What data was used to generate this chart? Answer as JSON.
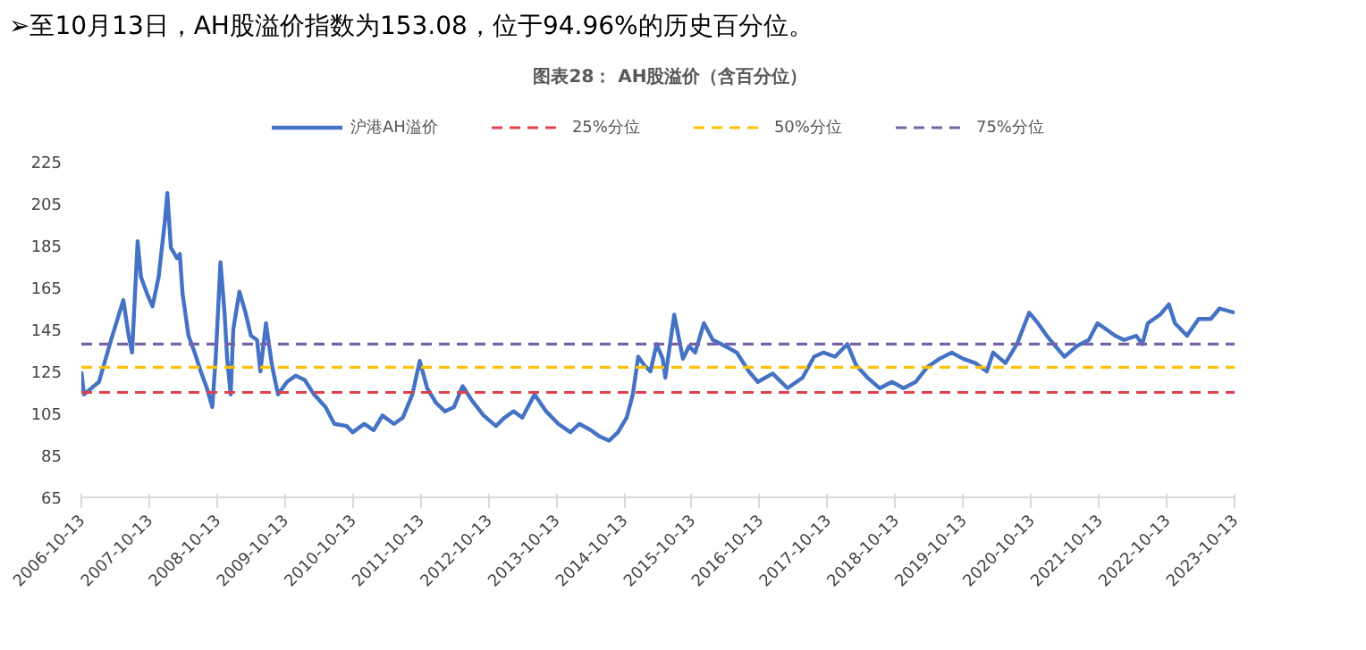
{
  "chart_data": {
    "type": "line",
    "title": "图表28： AH股溢价（含百分位）",
    "annotations": [
      "➢至10月13日，AH股溢价指数为153.08，位于94.96%的历史百分位。"
    ],
    "x": [
      "2006-10-13",
      "2006-10-27",
      "2007-01-16",
      "2007-03-22",
      "2007-05-27",
      "2007-06-25",
      "2007-07-13",
      "2007-08-12",
      "2007-08-30",
      "2007-10-02",
      "2007-10-31",
      "2007-12-03",
      "2008-01-05",
      "2008-01-19",
      "2008-02-07",
      "2008-03-11",
      "2008-03-26",
      "2008-04-10",
      "2008-05-12",
      "2008-06-14",
      "2008-07-17",
      "2008-08-19",
      "2008-09-17",
      "2008-10-05",
      "2008-10-31",
      "2008-11-22",
      "2008-12-06",
      "2008-12-25",
      "2009-01-08",
      "2009-02-10",
      "2009-03-15",
      "2009-04-13",
      "2009-05-16",
      "2009-06-03",
      "2009-07-03",
      "2009-08-04",
      "2009-09-06",
      "2009-10-24",
      "2009-12-10",
      "2010-01-27",
      "2010-03-19",
      "2010-05-20",
      "2010-07-06",
      "2010-09-10",
      "2010-10-13",
      "2010-12-14",
      "2011-02-03",
      "2011-03-22",
      "2011-05-23",
      "2011-07-10",
      "2011-08-30",
      "2011-10-09",
      "2011-11-18",
      "2012-01-05",
      "2012-02-21",
      "2012-04-10",
      "2012-05-27",
      "2012-07-17",
      "2012-09-17",
      "2012-11-22",
      "2013-01-08",
      "2013-02-25",
      "2013-04-13",
      "2013-06-18",
      "2013-08-19",
      "2013-10-24",
      "2013-12-28",
      "2014-02-14",
      "2014-04-17",
      "2014-06-03",
      "2014-07-24",
      "2014-09-10",
      "2014-10-27",
      "2014-11-29",
      "2014-12-28",
      "2015-01-30",
      "2015-03-04",
      "2015-04-06",
      "2015-05-09",
      "2015-05-23",
      "2015-07-10",
      "2015-08-26",
      "2015-09-28",
      "2015-10-31",
      "2015-12-17",
      "2016-02-03",
      "2016-04-10",
      "2016-06-11",
      "2016-08-15",
      "2016-10-02",
      "2016-12-21",
      "2017-03-11",
      "2017-05-31",
      "2017-08-01",
      "2017-09-21",
      "2017-11-22",
      "2018-01-27",
      "2018-03-15",
      "2018-05-16",
      "2018-07-21",
      "2018-09-24",
      "2018-11-26",
      "2019-01-30",
      "2019-04-02",
      "2019-06-07",
      "2019-08-12",
      "2019-10-13",
      "2019-12-17",
      "2020-02-17",
      "2020-03-22",
      "2020-05-27",
      "2020-07-28",
      "2020-10-02",
      "2020-11-18",
      "2021-01-05",
      "2021-02-21",
      "2021-04-10",
      "2021-06-14",
      "2021-08-19",
      "2021-10-05",
      "2021-11-22",
      "2022-01-08",
      "2022-02-25",
      "2022-05-01",
      "2022-06-03",
      "2022-07-03",
      "2022-09-06",
      "2022-10-24",
      "2022-11-26",
      "2023-01-30",
      "2023-04-02",
      "2023-06-07",
      "2023-07-24",
      "2023-10-13"
    ],
    "series": [
      {
        "name": "沪港AH溢价",
        "color": "#4472c4",
        "values": [
          125,
          114,
          120,
          140,
          159,
          142,
          134,
          187,
          170,
          162,
          156,
          170,
          196,
          210,
          184,
          179,
          181,
          162,
          142,
          134,
          125,
          117,
          108,
          131,
          177,
          153,
          131,
          114,
          145,
          163,
          153,
          142,
          140,
          125,
          148,
          128,
          114,
          120,
          123,
          121,
          114,
          108,
          100,
          99,
          96,
          100,
          97,
          104,
          100,
          103,
          114,
          130,
          117,
          110,
          106,
          108,
          118,
          111,
          104,
          99,
          103,
          106,
          103,
          114,
          106,
          100,
          96,
          100,
          97,
          94,
          92,
          96,
          103,
          114,
          132,
          128,
          125,
          138,
          131,
          122,
          152,
          131,
          137,
          134,
          148,
          140,
          137,
          134,
          125,
          120,
          124,
          117,
          122,
          132,
          134,
          132,
          138,
          128,
          122,
          117,
          120,
          117,
          120,
          127,
          131,
          134,
          131,
          129,
          125,
          134,
          129,
          138,
          153,
          148,
          142,
          137,
          132,
          137,
          140,
          148,
          145,
          142,
          140,
          142,
          138,
          148,
          152,
          157,
          148,
          142,
          150,
          150,
          155,
          153
        ]
      }
    ],
    "ref_lines": [
      {
        "axis": "y",
        "value": 115,
        "label": "25%分位",
        "color": "#e0404a",
        "line_style": "dashed"
      },
      {
        "axis": "y",
        "value": 127,
        "label": "50%分位",
        "color": "#ffc000",
        "line_style": "dashed"
      },
      {
        "axis": "y",
        "value": 138,
        "label": "75%分位",
        "color": "#7463a8",
        "line_style": "dashed"
      }
    ],
    "xlim": [
      "2006-10-13",
      "2023-10-13"
    ],
    "xticks": [
      "2006-10-13",
      "2007-10-13",
      "2008-10-13",
      "2009-10-13",
      "2010-10-13",
      "2011-10-13",
      "2012-10-13",
      "2013-10-13",
      "2014-10-13",
      "2015-10-13",
      "2016-10-13",
      "2017-10-13",
      "2018-10-13",
      "2019-10-13",
      "2020-10-13",
      "2021-10-13",
      "2022-10-13",
      "2023-10-13"
    ],
    "ylim": [
      65,
      225
    ],
    "yticks": [
      65,
      85,
      105,
      125,
      145,
      165,
      185,
      205,
      225
    ],
    "grid": false,
    "legend": "top",
    "line_style": "solid",
    "marker": "none"
  }
}
